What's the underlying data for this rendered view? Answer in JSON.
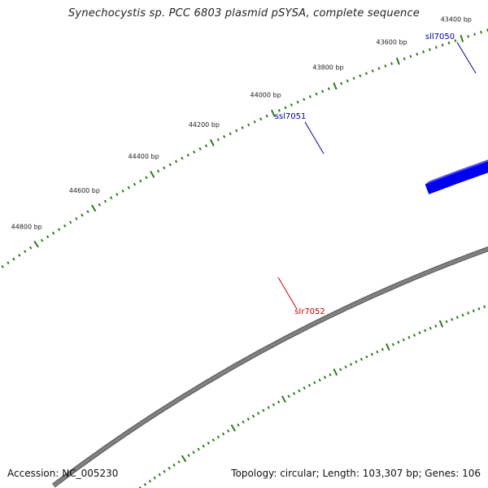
{
  "title": "Synechocystis sp. PCC 6803 plasmid pSYSA, complete sequence",
  "footer": {
    "accession_label": "Accession:",
    "accession": "NC_005230",
    "topology_label": "Topology:",
    "topology": "circular",
    "length_label": "Length:",
    "length": "103,307 bp",
    "genes_label": "Genes:",
    "genes": "106"
  },
  "colors": {
    "forward_gene": "#0000ee",
    "reverse_gene": "#ee0000",
    "backbone": "#808080",
    "tick": "#2e7d1e",
    "forward_label": "#000099",
    "reverse_label": "#cc0000"
  },
  "ticks": [
    "43400 bp",
    "43600 bp",
    "43800 bp",
    "44000 bp",
    "44200 bp",
    "44400 bp",
    "44600 bp",
    "44800 bp"
  ],
  "genes": [
    {
      "label": "sll7050",
      "strand": "forward"
    },
    {
      "label": "ssl7051",
      "strand": "forward"
    },
    {
      "label": "slr7052",
      "strand": "reverse"
    },
    {
      "label": "",
      "strand": "forward"
    }
  ]
}
